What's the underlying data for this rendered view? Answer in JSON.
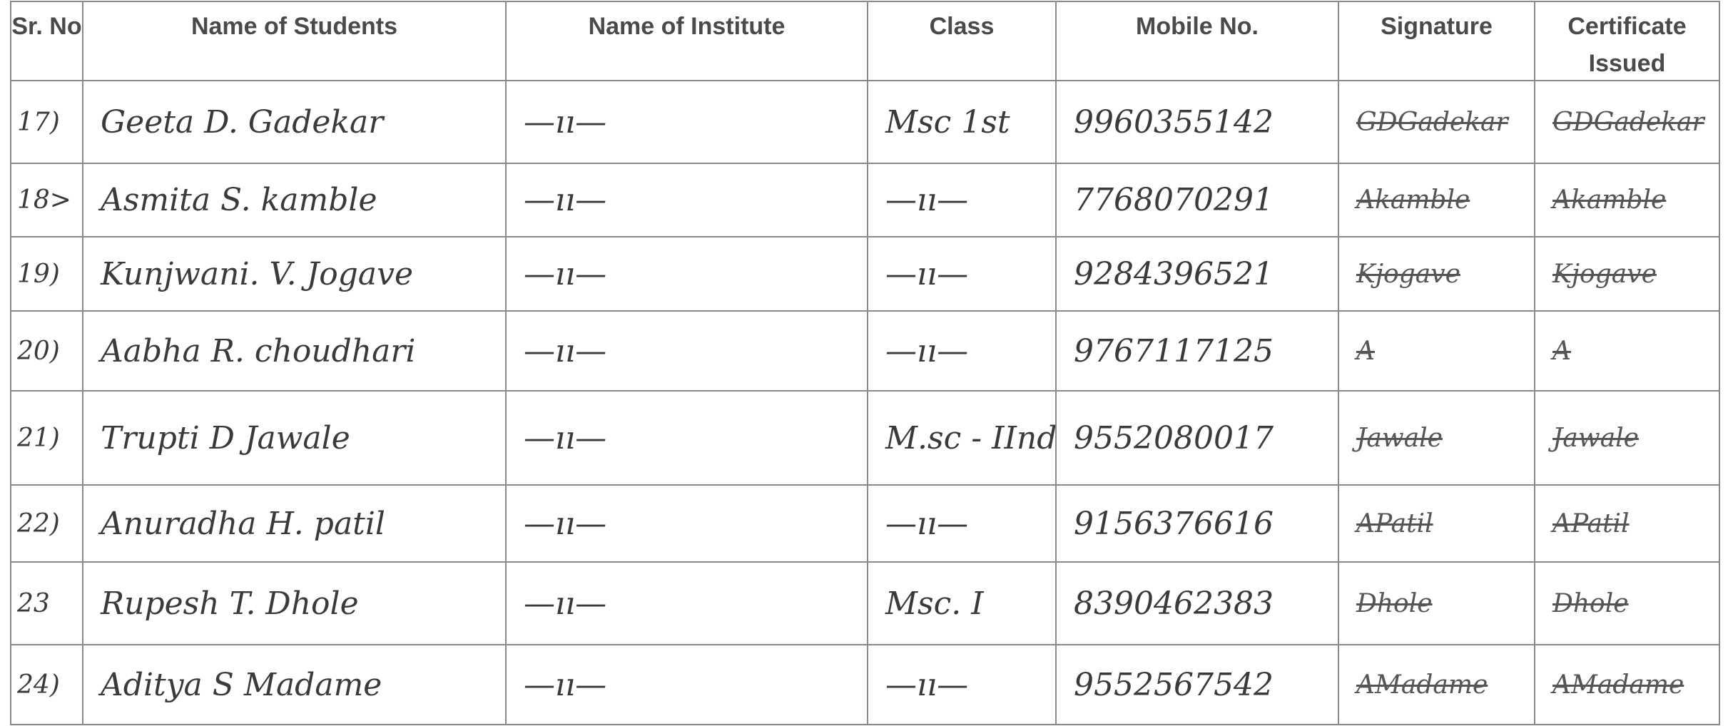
{
  "table": {
    "header": [
      "Sr. No",
      "Name of Students",
      "Name of Institute",
      "Class",
      "Mobile No.",
      "Signature",
      "Certificate Issued"
    ],
    "rows": [
      [
        "17)",
        "Geeta D. Gadekar",
        "—ıı—",
        "Msc 1st",
        "9960355142",
        "GDGadekar",
        "GDGadekar"
      ],
      [
        "18>",
        "Asmita S. kamble",
        "—ıı—",
        "—ıı—",
        "7768070291",
        "Akamble",
        "Akamble"
      ],
      [
        "19)",
        "Kunjwani. V. Jogave",
        "—ıı—",
        "—ıı—",
        "9284396521",
        "Kjogave",
        "Kjogave"
      ],
      [
        "20)",
        "Aabha R. choudhari",
        "—ıı—",
        "—ıı—",
        "9767117125",
        "A",
        "A"
      ],
      [
        "21)",
        "Trupti D Jawale",
        "—ıı—",
        "M.sc - IInd",
        "9552080017",
        "Jawale",
        "Jawale"
      ],
      [
        "22)",
        "Anuradha H. patil",
        "—ıı—",
        "—ıı—",
        "9156376616",
        "APatil",
        "APatil"
      ],
      [
        "23",
        "Rupesh T. Dhole",
        "—ıı—",
        "Msc. I",
        "8390462383",
        "Dhole",
        "Dhole"
      ],
      [
        "24)",
        "Aditya S Madame",
        "—ıı—",
        "—ıı—",
        "9552567542",
        "AMadame",
        "AMadame"
      ]
    ]
  }
}
